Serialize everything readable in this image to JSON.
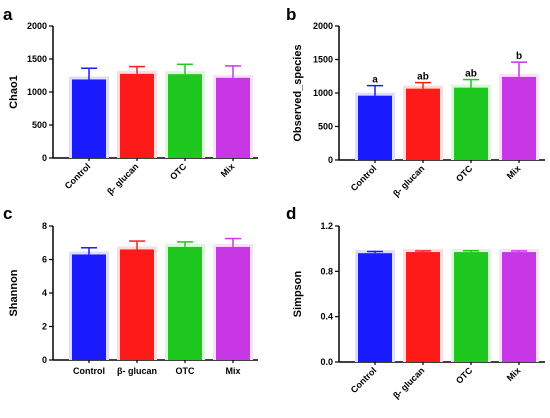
{
  "chart_data": [
    {
      "type": "bar",
      "panel": "a",
      "ylabel": "Chao1",
      "ylim": [
        0,
        2000
      ],
      "yticks": [
        0,
        500,
        1000,
        1500,
        2000
      ],
      "tick_labels": [
        "0",
        "500",
        "1000",
        "1500",
        "2000"
      ],
      "categories": [
        "Control",
        "β- glucan",
        "OTC",
        "Mix"
      ],
      "values": [
        1190,
        1275,
        1270,
        1215
      ],
      "errors": [
        170,
        110,
        150,
        180
      ],
      "colors": [
        "#1a1aff",
        "#ff1a1a",
        "#1ec81e",
        "#c837e6"
      ],
      "significance": [
        "",
        "",
        "",
        ""
      ]
    },
    {
      "type": "bar",
      "panel": "b",
      "ylabel": "Observed_species",
      "ylim": [
        0,
        2000
      ],
      "yticks": [
        0,
        500,
        1000,
        1500,
        2000
      ],
      "tick_labels": [
        "0",
        "500",
        "1000",
        "1500",
        "2000"
      ],
      "categories": [
        "Control",
        "β- glucan",
        "OTC",
        "Mix"
      ],
      "values": [
        960,
        1065,
        1080,
        1240
      ],
      "errors": [
        150,
        90,
        120,
        220
      ],
      "colors": [
        "#1a1aff",
        "#ff1a1a",
        "#1ec81e",
        "#c837e6"
      ],
      "significance": [
        "a",
        "ab",
        "ab",
        "b"
      ]
    },
    {
      "type": "bar",
      "panel": "c",
      "ylabel": "Shannon",
      "ylim": [
        0,
        8
      ],
      "yticks": [
        0,
        2,
        4,
        6,
        8
      ],
      "tick_labels": [
        "0",
        "2",
        "4",
        "6",
        "8"
      ],
      "categories": [
        "Control",
        "β- glucan",
        "OTC",
        "Mix"
      ],
      "values": [
        6.3,
        6.6,
        6.75,
        6.75
      ],
      "errors": [
        0.4,
        0.5,
        0.3,
        0.5
      ],
      "colors": [
        "#1a1aff",
        "#ff1a1a",
        "#1ec81e",
        "#c837e6"
      ],
      "significance": [
        "",
        "",
        "",
        ""
      ]
    },
    {
      "type": "bar",
      "panel": "d",
      "ylabel": "Simpson",
      "ylim": [
        0,
        1.2
      ],
      "yticks": [
        0,
        0.4,
        0.8,
        1.2
      ],
      "tick_labels": [
        "0.0",
        "0.4",
        "0.8",
        "1.2"
      ],
      "categories": [
        "Control",
        "β- glucan",
        "OTC",
        "Mix"
      ],
      "values": [
        0.96,
        0.97,
        0.97,
        0.97
      ],
      "errors": [
        0.015,
        0.01,
        0.012,
        0.01
      ],
      "colors": [
        "#1a1aff",
        "#ff1a1a",
        "#1ec81e",
        "#c837e6"
      ],
      "significance": [
        "",
        "",
        "",
        ""
      ]
    }
  ]
}
